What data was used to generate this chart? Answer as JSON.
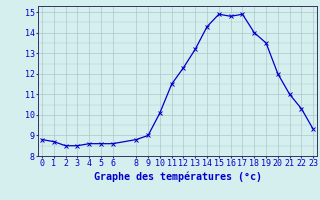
{
  "hours": [
    0,
    1,
    2,
    3,
    4,
    5,
    6,
    8,
    9,
    10,
    11,
    12,
    13,
    14,
    15,
    16,
    17,
    18,
    19,
    20,
    21,
    22,
    23
  ],
  "temps": [
    8.8,
    8.7,
    8.5,
    8.5,
    8.6,
    8.6,
    8.6,
    8.8,
    9.0,
    10.1,
    11.5,
    12.3,
    13.2,
    14.3,
    14.9,
    14.8,
    14.9,
    14.0,
    13.5,
    12.0,
    11.0,
    10.3,
    9.3
  ],
  "xlim": [
    -0.3,
    23.3
  ],
  "ylim": [
    8,
    15.3
  ],
  "yticks": [
    8,
    9,
    10,
    11,
    12,
    13,
    14,
    15
  ],
  "xticks": [
    0,
    1,
    2,
    3,
    4,
    5,
    6,
    8,
    9,
    10,
    11,
    12,
    13,
    14,
    15,
    16,
    17,
    18,
    19,
    20,
    21,
    22,
    23
  ],
  "xlabel": "Graphe des températures (°c)",
  "line_color": "#0000cc",
  "bg_color": "#d5efef",
  "grid_color": "#aac8cc",
  "axis_color": "#333366",
  "label_color": "#0000cc",
  "tick_fontsize": 6.0,
  "xlabel_fontsize": 7.2
}
